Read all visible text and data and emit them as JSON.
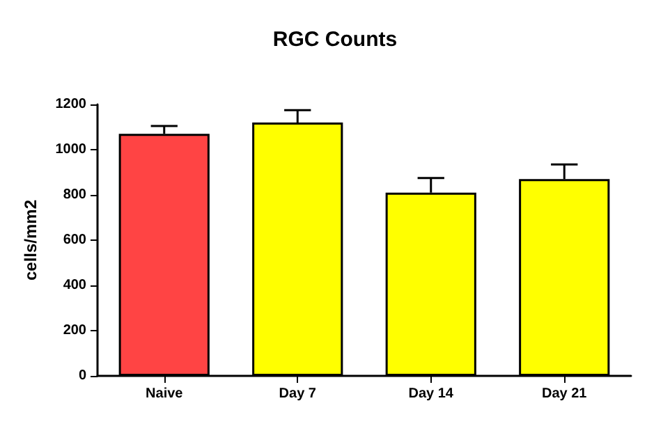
{
  "chart_data": {
    "type": "bar",
    "title": "RGC Counts",
    "ylabel": "cells/mm2",
    "categories": [
      "Naive",
      "Day 7",
      "Day 14",
      "Day 21"
    ],
    "values": [
      1070,
      1120,
      810,
      870
    ],
    "colors": [
      "#ff4444",
      "#ffff00",
      "#ffff00",
      "#ffff00"
    ],
    "errors": [
      [
        1070,
        1105
      ],
      [
        1120,
        1175
      ],
      [
        810,
        875
      ],
      [
        870,
        935
      ]
    ],
    "ylim": [
      0,
      1200
    ],
    "yticks": [
      0,
      200,
      400,
      600,
      800,
      1000,
      1200
    ],
    "grid": false
  }
}
